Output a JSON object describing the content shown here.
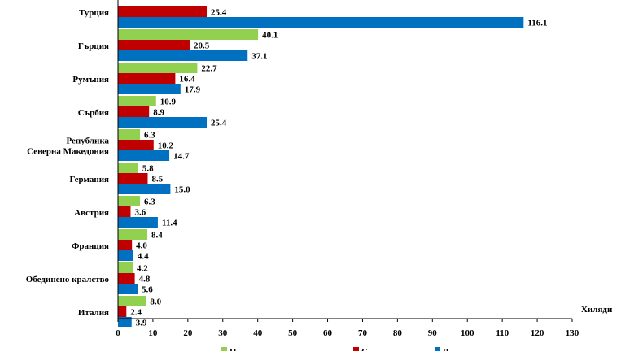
{
  "chart_data": {
    "type": "bar",
    "orientation": "horizontal",
    "x_unit_label": "Хиляди",
    "xlim": [
      0,
      130
    ],
    "x_ticks": [
      0,
      10,
      20,
      30,
      40,
      50,
      60,
      70,
      80,
      90,
      100,
      110,
      120,
      130
    ],
    "categories": [
      [
        "Турция"
      ],
      [
        "Гърция"
      ],
      [
        "Румъния"
      ],
      [
        "Сърбия"
      ],
      [
        "Република",
        "Северна Македония"
      ],
      [
        "Германия"
      ],
      [
        "Австрия"
      ],
      [
        "Франция"
      ],
      [
        "Обединено кралство"
      ],
      [
        "Италия"
      ]
    ],
    "series": [
      {
        "name": "Н",
        "color": "#92d050",
        "values": [
          null,
          40.1,
          22.7,
          10.9,
          6.3,
          5.8,
          6.3,
          8.4,
          4.2,
          8.0
        ]
      },
      {
        "name": "С",
        "color": "#c00000",
        "values": [
          25.4,
          20.5,
          16.4,
          8.9,
          10.2,
          8.5,
          3.6,
          4.0,
          4.8,
          2.4
        ]
      },
      {
        "name": "Д",
        "color": "#0070c0",
        "values": [
          116.1,
          37.1,
          17.9,
          25.4,
          14.7,
          15.0,
          11.4,
          4.4,
          5.6,
          3.9
        ]
      }
    ],
    "legend_position": "bottom"
  }
}
